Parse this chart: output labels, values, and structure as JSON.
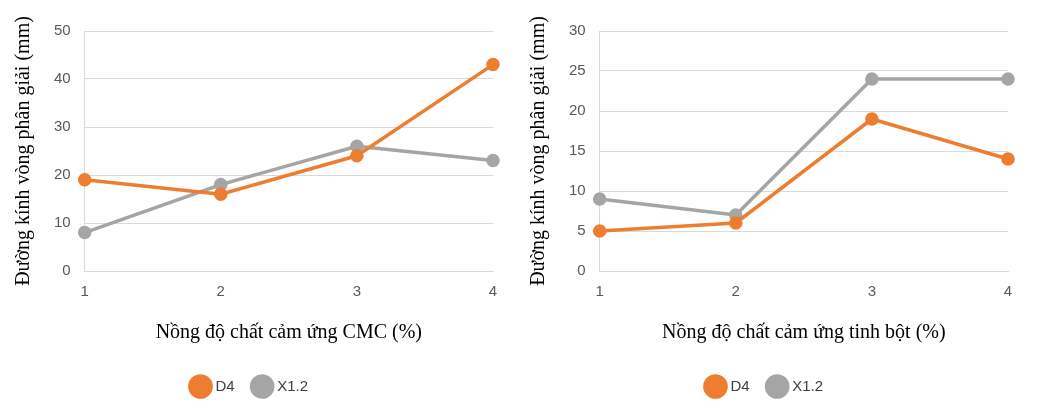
{
  "chart_data": [
    {
      "type": "line",
      "xlabel": "Nồng độ chất cảm ứng CMC (%)",
      "ylabel": "Đường kính vòng phân giải (mm)",
      "categories": [
        "1",
        "2",
        "3",
        "4"
      ],
      "series": [
        {
          "name": "D4",
          "color": "#ed7d31",
          "values": [
            19,
            16,
            24,
            43
          ]
        },
        {
          "name": "X1.2",
          "color": "#a5a5a5",
          "values": [
            8,
            18,
            26,
            23
          ]
        }
      ],
      "ylim": [
        0,
        50
      ],
      "yticks": [
        0,
        10,
        20,
        30,
        40,
        50
      ],
      "grid": "y",
      "legend": "bottom",
      "marker": "circle",
      "line_style": "solid"
    },
    {
      "type": "line",
      "xlabel": "Nồng độ chất cảm ứng tinh bột (%)",
      "ylabel": "Đường kính vòng phân giải (mm)",
      "categories": [
        "1",
        "2",
        "3",
        "4"
      ],
      "series": [
        {
          "name": "D4",
          "color": "#ed7d31",
          "values": [
            5,
            6,
            19,
            14
          ]
        },
        {
          "name": "X1.2",
          "color": "#a5a5a5",
          "values": [
            9,
            7,
            24,
            24
          ]
        }
      ],
      "ylim": [
        0,
        30
      ],
      "yticks": [
        0,
        5,
        10,
        15,
        20,
        25,
        30
      ],
      "grid": "y",
      "legend": "bottom",
      "marker": "circle",
      "line_style": "solid"
    }
  ]
}
